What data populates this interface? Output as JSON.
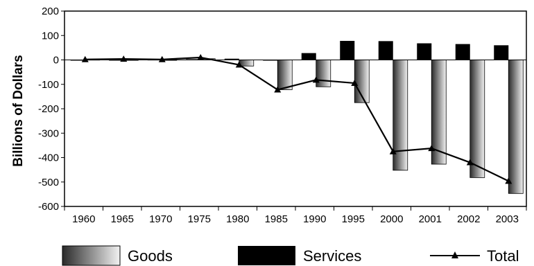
{
  "chart_data": {
    "type": "bar",
    "categories": [
      "1960",
      "1965",
      "1970",
      "1975",
      "1980",
      "1985",
      "1990",
      "1995",
      "2000",
      "2001",
      "2002",
      "2003"
    ],
    "series": [
      {
        "name": "Goods",
        "type": "bar",
        "values": [
          2,
          1,
          1,
          5,
          -25,
          -122,
          -110,
          -175,
          -452,
          -427,
          -482,
          -547
        ]
      },
      {
        "name": "Services",
        "type": "bar",
        "values": [
          -2,
          0,
          1,
          3,
          5,
          0,
          28,
          78,
          77,
          68,
          65,
          60
        ]
      },
      {
        "name": "Total",
        "type": "line",
        "values": [
          2,
          4,
          2,
          10,
          -20,
          -122,
          -82,
          -95,
          -375,
          -362,
          -420,
          -496
        ]
      }
    ],
    "title": "",
    "xlabel": "",
    "ylabel": "Billions of Dollars",
    "ylim": [
      -600,
      200
    ],
    "yticks": [
      200,
      100,
      0,
      -100,
      -200,
      -300,
      -400,
      -500,
      -600
    ],
    "grid": false,
    "legend": {
      "placement": "bottom",
      "items": [
        "Goods",
        "Services",
        "Total"
      ]
    },
    "colors": {
      "goods_dark": "#2a2a2a",
      "goods_light": "#f2f2f2",
      "services": "#000000",
      "total": "#000000"
    }
  }
}
